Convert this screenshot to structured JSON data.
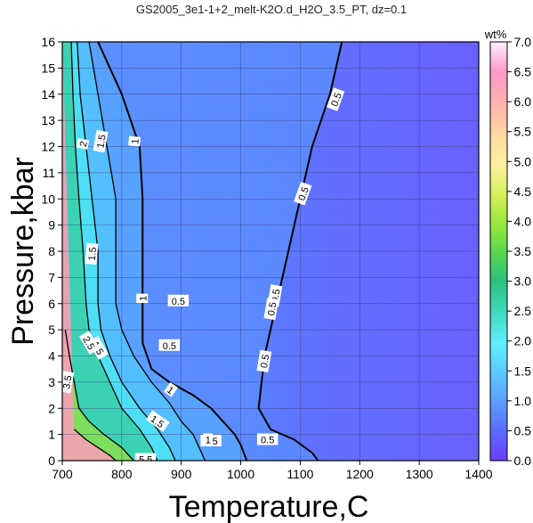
{
  "chart_data": {
    "type": "contour",
    "title": "GS2005_3e1-1+2_melt-K2O.d_H2O_3.5_PT, dz=0.1",
    "xlabel": "Temperature,C",
    "ylabel": "Pressure,kbar",
    "xlim": [
      700,
      1400
    ],
    "ylim": [
      0,
      16
    ],
    "x_ticks": [
      700,
      800,
      900,
      1000,
      1100,
      1200,
      1300,
      1400
    ],
    "y_ticks": [
      0,
      1,
      2,
      3,
      4,
      5,
      6,
      7,
      8,
      9,
      10,
      11,
      12,
      13,
      14,
      15,
      16
    ],
    "grid": true,
    "colorbar": {
      "label": "wt%",
      "range": [
        0.0,
        7.0
      ],
      "ticks": [
        "0.0",
        "0.5",
        "1.0",
        "1.5",
        "2.0",
        "2.5",
        "3.0",
        "3.5",
        "4.0",
        "4.5",
        "5.0",
        "5.5",
        "6.0",
        "6.5",
        "7.0"
      ],
      "colors": [
        "#6a3cff",
        "#5a6cff",
        "#5c9cff",
        "#5cc8ff",
        "#5ef0ff",
        "#3ad8b8",
        "#2cc07c",
        "#5cd84c",
        "#9ce83c",
        "#d8f05c",
        "#fff0a0",
        "#ffd8a0",
        "#ffb0b0",
        "#ff98c8",
        "#fff0ff"
      ]
    },
    "contours": [
      {
        "level": "0.5",
        "points": [
          [
            1170,
            16
          ],
          [
            1150,
            14
          ],
          [
            1120,
            12
          ],
          [
            1100,
            10
          ],
          [
            1080,
            8
          ],
          [
            1060,
            6
          ],
          [
            1050,
            5
          ],
          [
            1040,
            4
          ],
          [
            1035,
            3
          ],
          [
            1030,
            2
          ],
          [
            1050,
            1.2
          ],
          [
            1090,
            0.8
          ],
          [
            1120,
            0.3
          ],
          [
            1130,
            0
          ]
        ]
      },
      {
        "level": "1",
        "points": [
          [
            760,
            16
          ],
          [
            800,
            14
          ],
          [
            830,
            12
          ],
          [
            835,
            10
          ],
          [
            835,
            8
          ],
          [
            835,
            6
          ],
          [
            835,
            4.5
          ],
          [
            850,
            3.5
          ],
          [
            880,
            3
          ],
          [
            920,
            2.5
          ],
          [
            950,
            2
          ],
          [
            970,
            1.5
          ],
          [
            990,
            1
          ],
          [
            1000,
            0.6
          ],
          [
            1010,
            0
          ]
        ]
      },
      {
        "level": "1.5",
        "points": [
          [
            745,
            16
          ],
          [
            760,
            14
          ],
          [
            775,
            12
          ],
          [
            790,
            10
          ],
          [
            790,
            8
          ],
          [
            790,
            6
          ],
          [
            800,
            5
          ],
          [
            820,
            4
          ],
          [
            850,
            3
          ],
          [
            880,
            2.2
          ],
          [
            900,
            1.5
          ],
          [
            920,
            1
          ],
          [
            930,
            0.5
          ],
          [
            940,
            0
          ]
        ]
      },
      {
        "level": "2",
        "points": [
          [
            725,
            16
          ],
          [
            730,
            14
          ],
          [
            740,
            12
          ],
          [
            750,
            10
          ],
          [
            760,
            8
          ],
          [
            760,
            6
          ],
          [
            765,
            5
          ],
          [
            780,
            4
          ],
          [
            800,
            3
          ],
          [
            830,
            2
          ],
          [
            860,
            1.2
          ],
          [
            880,
            0.5
          ],
          [
            890,
            0
          ]
        ]
      },
      {
        "level": "2.5",
        "points": [
          [
            715,
            16
          ],
          [
            718,
            14
          ],
          [
            722,
            12
          ],
          [
            728,
            10
          ],
          [
            735,
            8
          ],
          [
            740,
            6
          ],
          [
            745,
            5
          ],
          [
            760,
            4
          ],
          [
            780,
            3
          ],
          [
            800,
            2
          ],
          [
            830,
            1.2
          ],
          [
            850,
            0.5
          ],
          [
            860,
            0
          ]
        ]
      },
      {
        "level": "3.5",
        "points": [
          [
            705,
            5
          ],
          [
            712,
            4
          ],
          [
            720,
            3
          ],
          [
            728,
            2
          ],
          [
            745,
            1.5
          ],
          [
            770,
            1
          ],
          [
            800,
            0.5
          ],
          [
            820,
            0
          ]
        ]
      },
      {
        "level": "5.5",
        "points": [
          [
            720,
            1.2
          ],
          [
            740,
            0.8
          ],
          [
            760,
            0.5
          ],
          [
            780,
            0.2
          ],
          [
            790,
            0
          ]
        ]
      }
    ],
    "contour_labels": [
      {
        "text": "0.5",
        "x": 1160,
        "y": 13.8,
        "rot": -70
      },
      {
        "text": "0.5",
        "x": 1105,
        "y": 10.2,
        "rot": -70
      },
      {
        "text": "0.5",
        "x": 1058,
        "y": 6.3,
        "rot": -80
      },
      {
        "text": "0.5",
        "x": 1052,
        "y": 5.8,
        "rot": -80
      },
      {
        "text": "0.5",
        "x": 1040,
        "y": 3.8,
        "rot": -80
      },
      {
        "text": "0.5",
        "x": 895,
        "y": 6.1,
        "rot": 0
      },
      {
        "text": "0.5",
        "x": 880,
        "y": 4.4,
        "rot": 0
      },
      {
        "text": "0.5",
        "x": 950,
        "y": 0.75,
        "rot": 0
      },
      {
        "text": "0.5",
        "x": 1045,
        "y": 0.8,
        "rot": 0
      },
      {
        "text": "1",
        "x": 822,
        "y": 12.2,
        "rot": -85
      },
      {
        "text": "1",
        "x": 835,
        "y": 6.2,
        "rot": -90
      },
      {
        "text": "1",
        "x": 882,
        "y": 2.7,
        "rot": 35
      },
      {
        "text": "1",
        "x": 945,
        "y": 0.8,
        "rot": 0
      },
      {
        "text": "1.5",
        "x": 765,
        "y": 12.2,
        "rot": -80
      },
      {
        "text": "1.5",
        "x": 750,
        "y": 7.9,
        "rot": -85
      },
      {
        "text": "1.5",
        "x": 760,
        "y": 4.3,
        "rot": 60
      },
      {
        "text": "1.5",
        "x": 860,
        "y": 1.5,
        "rot": 35
      },
      {
        "text": "2",
        "x": 735,
        "y": 12.1,
        "rot": -80
      },
      {
        "text": "2.5",
        "x": 745,
        "y": 4.5,
        "rot": 60
      },
      {
        "text": "3.5",
        "x": 708,
        "y": 3.0,
        "rot": -80
      },
      {
        "text": "5.5",
        "x": 840,
        "y": 0.05,
        "rot": 0
      }
    ]
  }
}
